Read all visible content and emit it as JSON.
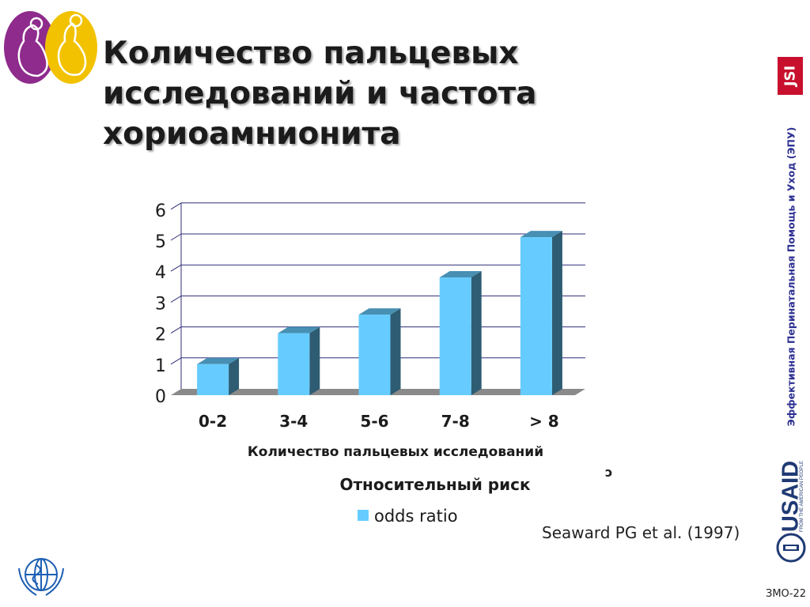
{
  "slide": {
    "title": "Количество пальцевых исследований и частота хориоамнионита",
    "sidebar_text": "Эффективная Перинатальная Помощь и Уход (ЭПУ)",
    "jsi_logo": "JSI",
    "usaid_logo": "USAID",
    "usaid_tagline": "FROM THE AMERICAN PEOPLE",
    "citation": "Seaward PG et al. (1997)",
    "slide_code": "ЗМО-22",
    "stray_mark": "ↄ"
  },
  "chart_data": {
    "type": "bar",
    "categories": [
      "0-2",
      "3-4",
      "5-6",
      "7-8",
      "> 8"
    ],
    "series": [
      {
        "name": "odds ratio",
        "values": [
          1,
          2,
          2.6,
          3.8,
          5.1
        ]
      }
    ],
    "xlabel": "Количество пальцевых исследований",
    "legend_title": "Относительный риск",
    "y_ticks": [
      0,
      1,
      2,
      3,
      4,
      5,
      6
    ],
    "ylim": [
      0,
      6
    ],
    "grid": true,
    "bar_color": "#66ccff",
    "legend_position": "bottom"
  }
}
